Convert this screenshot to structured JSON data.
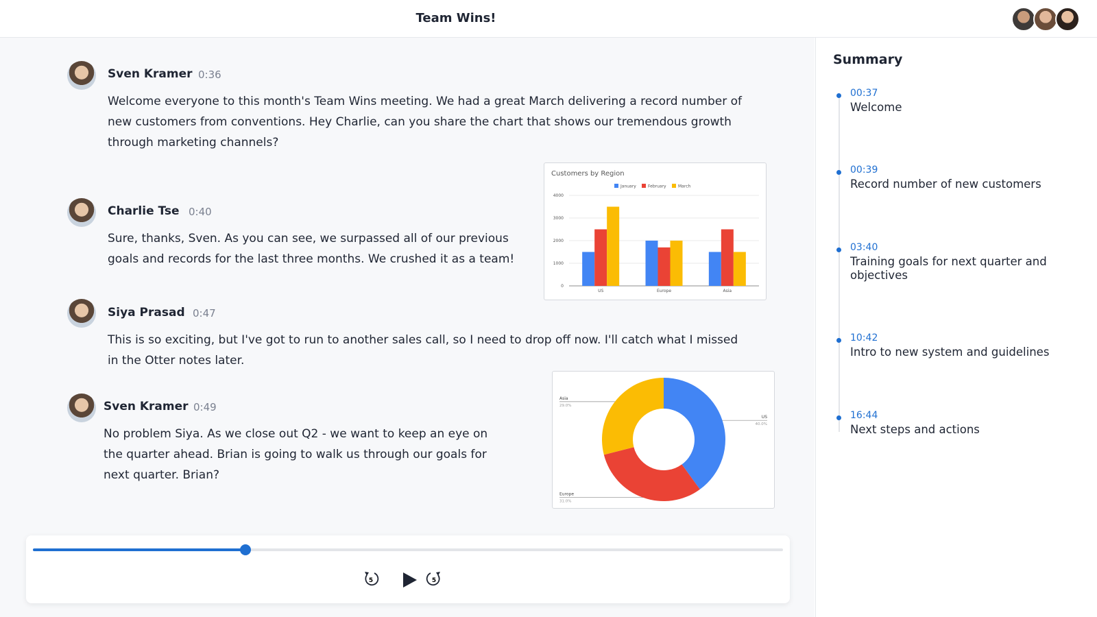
{
  "header": {
    "title": "Team Wins!"
  },
  "transcript": [
    {
      "speaker": "Sven Kramer",
      "time": "0:36",
      "text": "Welcome everyone to this month's Team Wins meeting. We had a great March delivering a record number of new customers from conventions. Hey Charlie, can you share the chart that shows our tremendous growth through marketing channels?"
    },
    {
      "speaker": "Charlie Tse",
      "time": "0:40",
      "text": "Sure, thanks, Sven. As you can see, we surpassed all of our previous goals and records for the last three months. We crushed it as a team!"
    },
    {
      "speaker": "Siya Prasad",
      "time": "0:47",
      "text": "This is so exciting, but I've got to run to another sales call, so I need to drop off now. I'll catch what I missed in the Otter notes later."
    },
    {
      "speaker": "Sven Kramer",
      "time": "0:49",
      "text": "No problem Siya. As we close out Q2 - we want to keep an eye on the quarter ahead. Brian is going to walk us through our goals for next quarter. Brian?"
    }
  ],
  "chart_data": [
    {
      "type": "bar",
      "title": "Customers by Region",
      "categories": [
        "US",
        "Europe",
        "Asia"
      ],
      "series": [
        {
          "name": "January",
          "color": "#4285f4",
          "values": [
            1500,
            2000,
            1500
          ]
        },
        {
          "name": "February",
          "color": "#ea4335",
          "values": [
            2500,
            1700,
            2500
          ]
        },
        {
          "name": "March",
          "color": "#fbbc04",
          "values": [
            3500,
            2000,
            1500
          ]
        }
      ],
      "ylim": [
        0,
        4000
      ],
      "yticks": [
        0,
        1000,
        2000,
        3000,
        4000
      ],
      "grid": true,
      "legend": "top"
    },
    {
      "type": "donut",
      "categories": [
        "US",
        "Europe",
        "Asia"
      ],
      "values": [
        40,
        31,
        29
      ],
      "value_labels": [
        "40.0%",
        "31.0%",
        "29.0%"
      ],
      "colors": [
        "#4285f4",
        "#ea4335",
        "#fbbc04"
      ]
    }
  ],
  "player": {
    "skip_back": "5",
    "skip_forward": "5"
  },
  "summary": {
    "title": "Summary",
    "items": [
      {
        "time": "00:37",
        "label": "Welcome"
      },
      {
        "time": "00:39",
        "label": "Record number of new customers"
      },
      {
        "time": "03:40",
        "label": "Training goals for next quarter and objectives"
      },
      {
        "time": "10:42",
        "label": "Intro to new system and guidelines"
      },
      {
        "time": "16:44",
        "label": "Next steps and actions"
      }
    ]
  }
}
